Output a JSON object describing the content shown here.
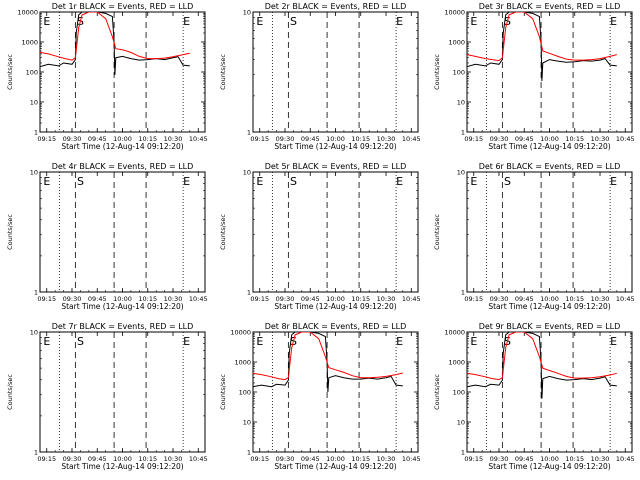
{
  "chart_data": {
    "type": "line",
    "x_tick_labels": [
      "09:15",
      "09:30",
      "09:45",
      "10:00",
      "10:15",
      "10:30",
      "10:45"
    ],
    "x_ticks_min": [
      555,
      570,
      585,
      600,
      615,
      630,
      645
    ],
    "x_range_min": [
      551,
      649
    ],
    "y_label": "Counts/sec",
    "x_label": "Start Time (12-Aug-14 09:12:20)",
    "line_colors": {
      "events": "#000000",
      "lld": "#ff0000"
    },
    "vlines_dotted_min": [
      562.5,
      636
    ],
    "vlines_dashed_min": [
      572,
      595,
      614
    ],
    "panels": [
      {
        "title": "Det 1r BLACK = Events, RED = LLD",
        "ylog": true,
        "ylim": [
          1,
          10000
        ],
        "y_tick_labels": [
          "1",
          "10",
          "100",
          "1000",
          "10000"
        ],
        "y_ticks": [
          1,
          10,
          100,
          1000,
          10000
        ],
        "marks": [
          {
            "text": "E",
            "x": 553
          },
          {
            "text": "S",
            "x": 573
          },
          {
            "text": "E",
            "x": 636
          }
        ],
        "events": [
          [
            551,
            150
          ],
          [
            556,
            180
          ],
          [
            562,
            160
          ],
          [
            565,
            200
          ],
          [
            570,
            180
          ],
          [
            572,
            260
          ],
          [
            572.5,
            2000
          ],
          [
            574,
            8000
          ],
          [
            576,
            10000
          ],
          [
            580,
            10000
          ],
          [
            585,
            10000
          ],
          [
            590,
            9000
          ],
          [
            594,
            7000
          ],
          [
            595,
            1000
          ],
          [
            595.5,
            80
          ],
          [
            596,
            300
          ],
          [
            600,
            330
          ],
          [
            605,
            280
          ],
          [
            610,
            250
          ],
          [
            615,
            260
          ],
          [
            620,
            280
          ],
          [
            625,
            260
          ],
          [
            630,
            300
          ],
          [
            633,
            320
          ],
          [
            636,
            170
          ],
          [
            640,
            160
          ]
        ],
        "lld": [
          [
            551,
            450
          ],
          [
            556,
            400
          ],
          [
            562,
            320
          ],
          [
            566,
            280
          ],
          [
            570,
            250
          ],
          [
            572,
            300
          ],
          [
            574,
            3000
          ],
          [
            576,
            8000
          ],
          [
            580,
            11000
          ],
          [
            585,
            10000
          ],
          [
            590,
            6000
          ],
          [
            594,
            1500
          ],
          [
            596,
            600
          ],
          [
            600,
            550
          ],
          [
            605,
            450
          ],
          [
            610,
            330
          ],
          [
            615,
            280
          ],
          [
            620,
            280
          ],
          [
            625,
            290
          ],
          [
            630,
            320
          ],
          [
            636,
            380
          ],
          [
            640,
            420
          ]
        ]
      },
      {
        "title": "Det 2r BLACK = Events, RED = LLD",
        "ylog": true,
        "ylim": [
          1,
          10
        ],
        "y_tick_labels": [
          "1",
          "10"
        ],
        "y_ticks": [
          1,
          10
        ],
        "marks": [
          {
            "text": "E",
            "x": 553
          },
          {
            "text": "S",
            "x": 573
          },
          {
            "text": "E",
            "x": 636
          }
        ],
        "events": [],
        "lld": []
      },
      {
        "title": "Det 3r BLACK = Events, RED = LLD",
        "ylog": true,
        "ylim": [
          1,
          10000
        ],
        "y_tick_labels": [
          "1",
          "10",
          "100",
          "1000",
          "10000"
        ],
        "y_ticks": [
          1,
          10,
          100,
          1000,
          10000
        ],
        "marks": [
          {
            "text": "E",
            "x": 553
          },
          {
            "text": "S",
            "x": 573
          },
          {
            "text": "E",
            "x": 636
          }
        ],
        "events": [
          [
            551,
            150
          ],
          [
            556,
            180
          ],
          [
            562,
            160
          ],
          [
            565,
            200
          ],
          [
            570,
            180
          ],
          [
            572,
            260
          ],
          [
            572.5,
            2000
          ],
          [
            574,
            8000
          ],
          [
            576,
            10000
          ],
          [
            580,
            10000
          ],
          [
            585,
            10000
          ],
          [
            590,
            9000
          ],
          [
            594,
            7000
          ],
          [
            595,
            1000
          ],
          [
            595.5,
            50
          ],
          [
            596,
            200
          ],
          [
            600,
            260
          ],
          [
            605,
            230
          ],
          [
            610,
            210
          ],
          [
            615,
            220
          ],
          [
            620,
            240
          ],
          [
            625,
            230
          ],
          [
            630,
            250
          ],
          [
            633,
            280
          ],
          [
            636,
            170
          ],
          [
            640,
            160
          ]
        ],
        "lld": [
          [
            551,
            380
          ],
          [
            556,
            330
          ],
          [
            562,
            280
          ],
          [
            566,
            260
          ],
          [
            570,
            240
          ],
          [
            572,
            300
          ],
          [
            574,
            3000
          ],
          [
            576,
            8000
          ],
          [
            580,
            11000
          ],
          [
            585,
            10000
          ],
          [
            590,
            6000
          ],
          [
            594,
            1500
          ],
          [
            596,
            500
          ],
          [
            600,
            420
          ],
          [
            605,
            330
          ],
          [
            610,
            270
          ],
          [
            615,
            250
          ],
          [
            620,
            250
          ],
          [
            625,
            260
          ],
          [
            630,
            280
          ],
          [
            636,
            330
          ],
          [
            640,
            380
          ]
        ]
      },
      {
        "title": "Det 4r BLACK = Events, RED = LLD",
        "ylog": true,
        "ylim": [
          1,
          10
        ],
        "y_tick_labels": [
          "1",
          "10"
        ],
        "y_ticks": [
          1,
          10
        ],
        "marks": [
          {
            "text": "E",
            "x": 553
          },
          {
            "text": "S",
            "x": 573
          },
          {
            "text": "E",
            "x": 636
          }
        ],
        "events": [],
        "lld": []
      },
      {
        "title": "Det 5r BLACK = Events, RED = LLD",
        "ylog": true,
        "ylim": [
          1,
          10
        ],
        "y_tick_labels": [
          "1",
          "10"
        ],
        "y_ticks": [
          1,
          10
        ],
        "marks": [
          {
            "text": "E",
            "x": 553
          },
          {
            "text": "S",
            "x": 573
          },
          {
            "text": "E",
            "x": 636
          }
        ],
        "events": [],
        "lld": []
      },
      {
        "title": "Det 6r BLACK = Events, RED = LLD",
        "ylog": true,
        "ylim": [
          1,
          10
        ],
        "y_tick_labels": [
          "1",
          "10"
        ],
        "y_ticks": [
          1,
          10
        ],
        "marks": [
          {
            "text": "E",
            "x": 553
          },
          {
            "text": "S",
            "x": 573
          },
          {
            "text": "E",
            "x": 636
          }
        ],
        "events": [],
        "lld": []
      },
      {
        "title": "Det 7r BLACK = Events, RED = LLD",
        "ylog": true,
        "ylim": [
          1,
          10
        ],
        "y_tick_labels": [
          "1",
          "10"
        ],
        "y_ticks": [
          1,
          10
        ],
        "marks": [
          {
            "text": "E",
            "x": 553
          },
          {
            "text": "S",
            "x": 573
          },
          {
            "text": "E",
            "x": 636
          }
        ],
        "events": [],
        "lld": []
      },
      {
        "title": "Det 8r BLACK = Events, RED = LLD",
        "ylog": true,
        "ylim": [
          1,
          10000
        ],
        "y_tick_labels": [
          "1",
          "10",
          "100",
          "1000",
          "10000"
        ],
        "y_ticks": [
          1,
          10,
          100,
          1000,
          10000
        ],
        "marks": [
          {
            "text": "E",
            "x": 553
          },
          {
            "text": "S",
            "x": 573
          },
          {
            "text": "E",
            "x": 636
          }
        ],
        "events": [
          [
            551,
            150
          ],
          [
            556,
            170
          ],
          [
            562,
            150
          ],
          [
            565,
            180
          ],
          [
            570,
            170
          ],
          [
            572,
            250
          ],
          [
            572.5,
            2000
          ],
          [
            574,
            8000
          ],
          [
            576,
            10000
          ],
          [
            580,
            10000
          ],
          [
            585,
            10000
          ],
          [
            590,
            9000
          ],
          [
            594,
            7000
          ],
          [
            595,
            1000
          ],
          [
            595.5,
            100
          ],
          [
            596,
            300
          ],
          [
            600,
            350
          ],
          [
            605,
            300
          ],
          [
            610,
            270
          ],
          [
            615,
            270
          ],
          [
            620,
            290
          ],
          [
            625,
            270
          ],
          [
            630,
            300
          ],
          [
            633,
            330
          ],
          [
            636,
            170
          ],
          [
            640,
            160
          ]
        ],
        "lld": [
          [
            551,
            420
          ],
          [
            556,
            380
          ],
          [
            562,
            320
          ],
          [
            566,
            280
          ],
          [
            570,
            260
          ],
          [
            572,
            300
          ],
          [
            574,
            3000
          ],
          [
            576,
            8000
          ],
          [
            580,
            11000
          ],
          [
            585,
            10000
          ],
          [
            590,
            6000
          ],
          [
            594,
            1500
          ],
          [
            596,
            650
          ],
          [
            600,
            550
          ],
          [
            605,
            450
          ],
          [
            610,
            350
          ],
          [
            615,
            300
          ],
          [
            620,
            300
          ],
          [
            625,
            310
          ],
          [
            630,
            330
          ],
          [
            636,
            380
          ],
          [
            640,
            430
          ]
        ]
      },
      {
        "title": "Det 9r BLACK = Events, RED = LLD",
        "ylog": true,
        "ylim": [
          1,
          10000
        ],
        "y_tick_labels": [
          "1",
          "10",
          "100",
          "1000",
          "10000"
        ],
        "y_ticks": [
          1,
          10,
          100,
          1000,
          10000
        ],
        "marks": [
          {
            "text": "E",
            "x": 553
          },
          {
            "text": "S",
            "x": 573
          },
          {
            "text": "E",
            "x": 636
          }
        ],
        "events": [
          [
            551,
            150
          ],
          [
            556,
            170
          ],
          [
            562,
            150
          ],
          [
            565,
            180
          ],
          [
            570,
            170
          ],
          [
            572,
            250
          ],
          [
            572.5,
            2000
          ],
          [
            574,
            8000
          ],
          [
            576,
            10000
          ],
          [
            580,
            10000
          ],
          [
            585,
            10000
          ],
          [
            590,
            9000
          ],
          [
            594,
            7000
          ],
          [
            595,
            1000
          ],
          [
            595.5,
            60
          ],
          [
            596,
            280
          ],
          [
            600,
            330
          ],
          [
            605,
            280
          ],
          [
            610,
            250
          ],
          [
            615,
            260
          ],
          [
            620,
            280
          ],
          [
            625,
            260
          ],
          [
            630,
            290
          ],
          [
            633,
            320
          ],
          [
            636,
            170
          ],
          [
            640,
            160
          ]
        ],
        "lld": [
          [
            551,
            420
          ],
          [
            556,
            380
          ],
          [
            562,
            320
          ],
          [
            566,
            280
          ],
          [
            570,
            260
          ],
          [
            572,
            300
          ],
          [
            574,
            3000
          ],
          [
            576,
            8000
          ],
          [
            580,
            11000
          ],
          [
            585,
            10000
          ],
          [
            590,
            6000
          ],
          [
            594,
            1500
          ],
          [
            596,
            620
          ],
          [
            600,
            520
          ],
          [
            605,
            420
          ],
          [
            610,
            330
          ],
          [
            615,
            290
          ],
          [
            620,
            290
          ],
          [
            625,
            300
          ],
          [
            630,
            320
          ],
          [
            636,
            370
          ],
          [
            640,
            420
          ]
        ]
      }
    ]
  }
}
